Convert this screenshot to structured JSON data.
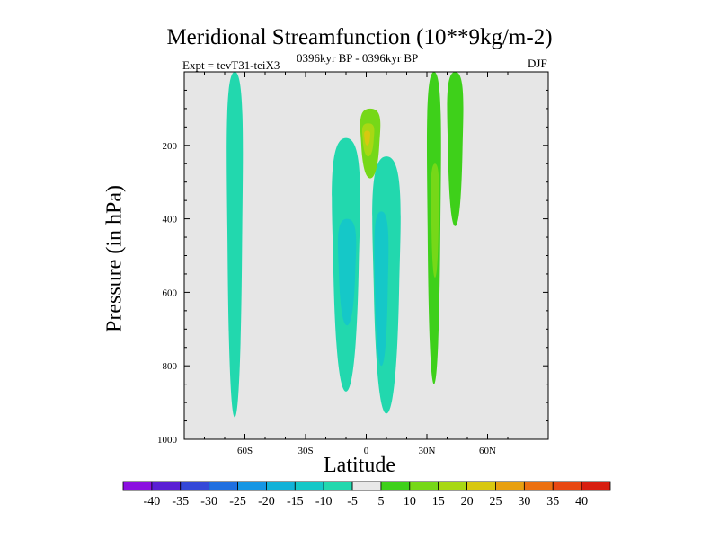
{
  "chart_data": {
    "type": "contour",
    "title": "Meridional Streamfunction (10**9kg/m-2)",
    "subtitle_left": "Expt = tevT31-teiX3",
    "subtitle_center": "0396kyr BP - 0396kyr BP",
    "subtitle_right": "DJF",
    "xlabel": "Latitude",
    "ylabel": "Pressure (in hPa)",
    "xlim": [
      -90,
      90
    ],
    "ylim": [
      1000,
      0
    ],
    "x_ticks": [
      {
        "value": -60,
        "label": "60S"
      },
      {
        "value": -30,
        "label": "30S"
      },
      {
        "value": 0,
        "label": "0"
      },
      {
        "value": 30,
        "label": "30N"
      },
      {
        "value": 60,
        "label": "60N"
      }
    ],
    "y_ticks": [
      200,
      400,
      600,
      800,
      1000
    ],
    "colorbar": {
      "levels": [
        -40,
        -35,
        -30,
        -25,
        -20,
        -15,
        -10,
        -5,
        5,
        10,
        15,
        20,
        25,
        30,
        35,
        40
      ],
      "colors": [
        "#8b10e0",
        "#5a1ed4",
        "#3448d8",
        "#1f6fe0",
        "#1696e4",
        "#12b2d8",
        "#15c8c8",
        "#22d8ae",
        "#e8e8e8",
        "#3ed01a",
        "#76d818",
        "#a8d814",
        "#d8c810",
        "#e8a010",
        "#ec7010",
        "#e84812",
        "#d81e10"
      ]
    },
    "cells": [
      {
        "name": "southern-polar-strip",
        "level": -7,
        "lat_range": [
          -69,
          -61
        ],
        "p_range": [
          0,
          940
        ]
      },
      {
        "name": "tropical-negative-cell-west",
        "level": -10,
        "lat_range": [
          -17,
          -3
        ],
        "p_range": [
          180,
          870
        ]
      },
      {
        "name": "tropical-negative-cell-east",
        "level": -10,
        "lat_range": [
          3,
          17
        ],
        "p_range": [
          230,
          930
        ]
      },
      {
        "name": "tropical-negative-core-west",
        "level": -15,
        "lat_range": [
          -14,
          -5
        ],
        "p_range": [
          400,
          690
        ]
      },
      {
        "name": "tropical-negative-core-east",
        "level": -15,
        "lat_range": [
          4,
          11
        ],
        "p_range": [
          380,
          800
        ]
      },
      {
        "name": "upper-positive-cell",
        "level": 10,
        "lat_range": [
          -3,
          7
        ],
        "p_range": [
          100,
          290
        ]
      },
      {
        "name": "upper-positive-core",
        "level": 15,
        "lat_range": [
          -2,
          4
        ],
        "p_range": [
          140,
          230
        ]
      },
      {
        "name": "upper-positive-max",
        "level": 20,
        "lat_range": [
          -1,
          2
        ],
        "p_range": [
          160,
          200
        ]
      },
      {
        "name": "northern-positive-strip",
        "level": 8,
        "lat_range": [
          30,
          37
        ],
        "p_range": [
          0,
          850
        ]
      },
      {
        "name": "northern-positive-core",
        "level": 12,
        "lat_range": [
          32,
          36
        ],
        "p_range": [
          250,
          560
        ]
      },
      {
        "name": "northern-upper-cell",
        "level": 8,
        "lat_range": [
          40,
          48
        ],
        "p_range": [
          0,
          420
        ]
      }
    ]
  }
}
